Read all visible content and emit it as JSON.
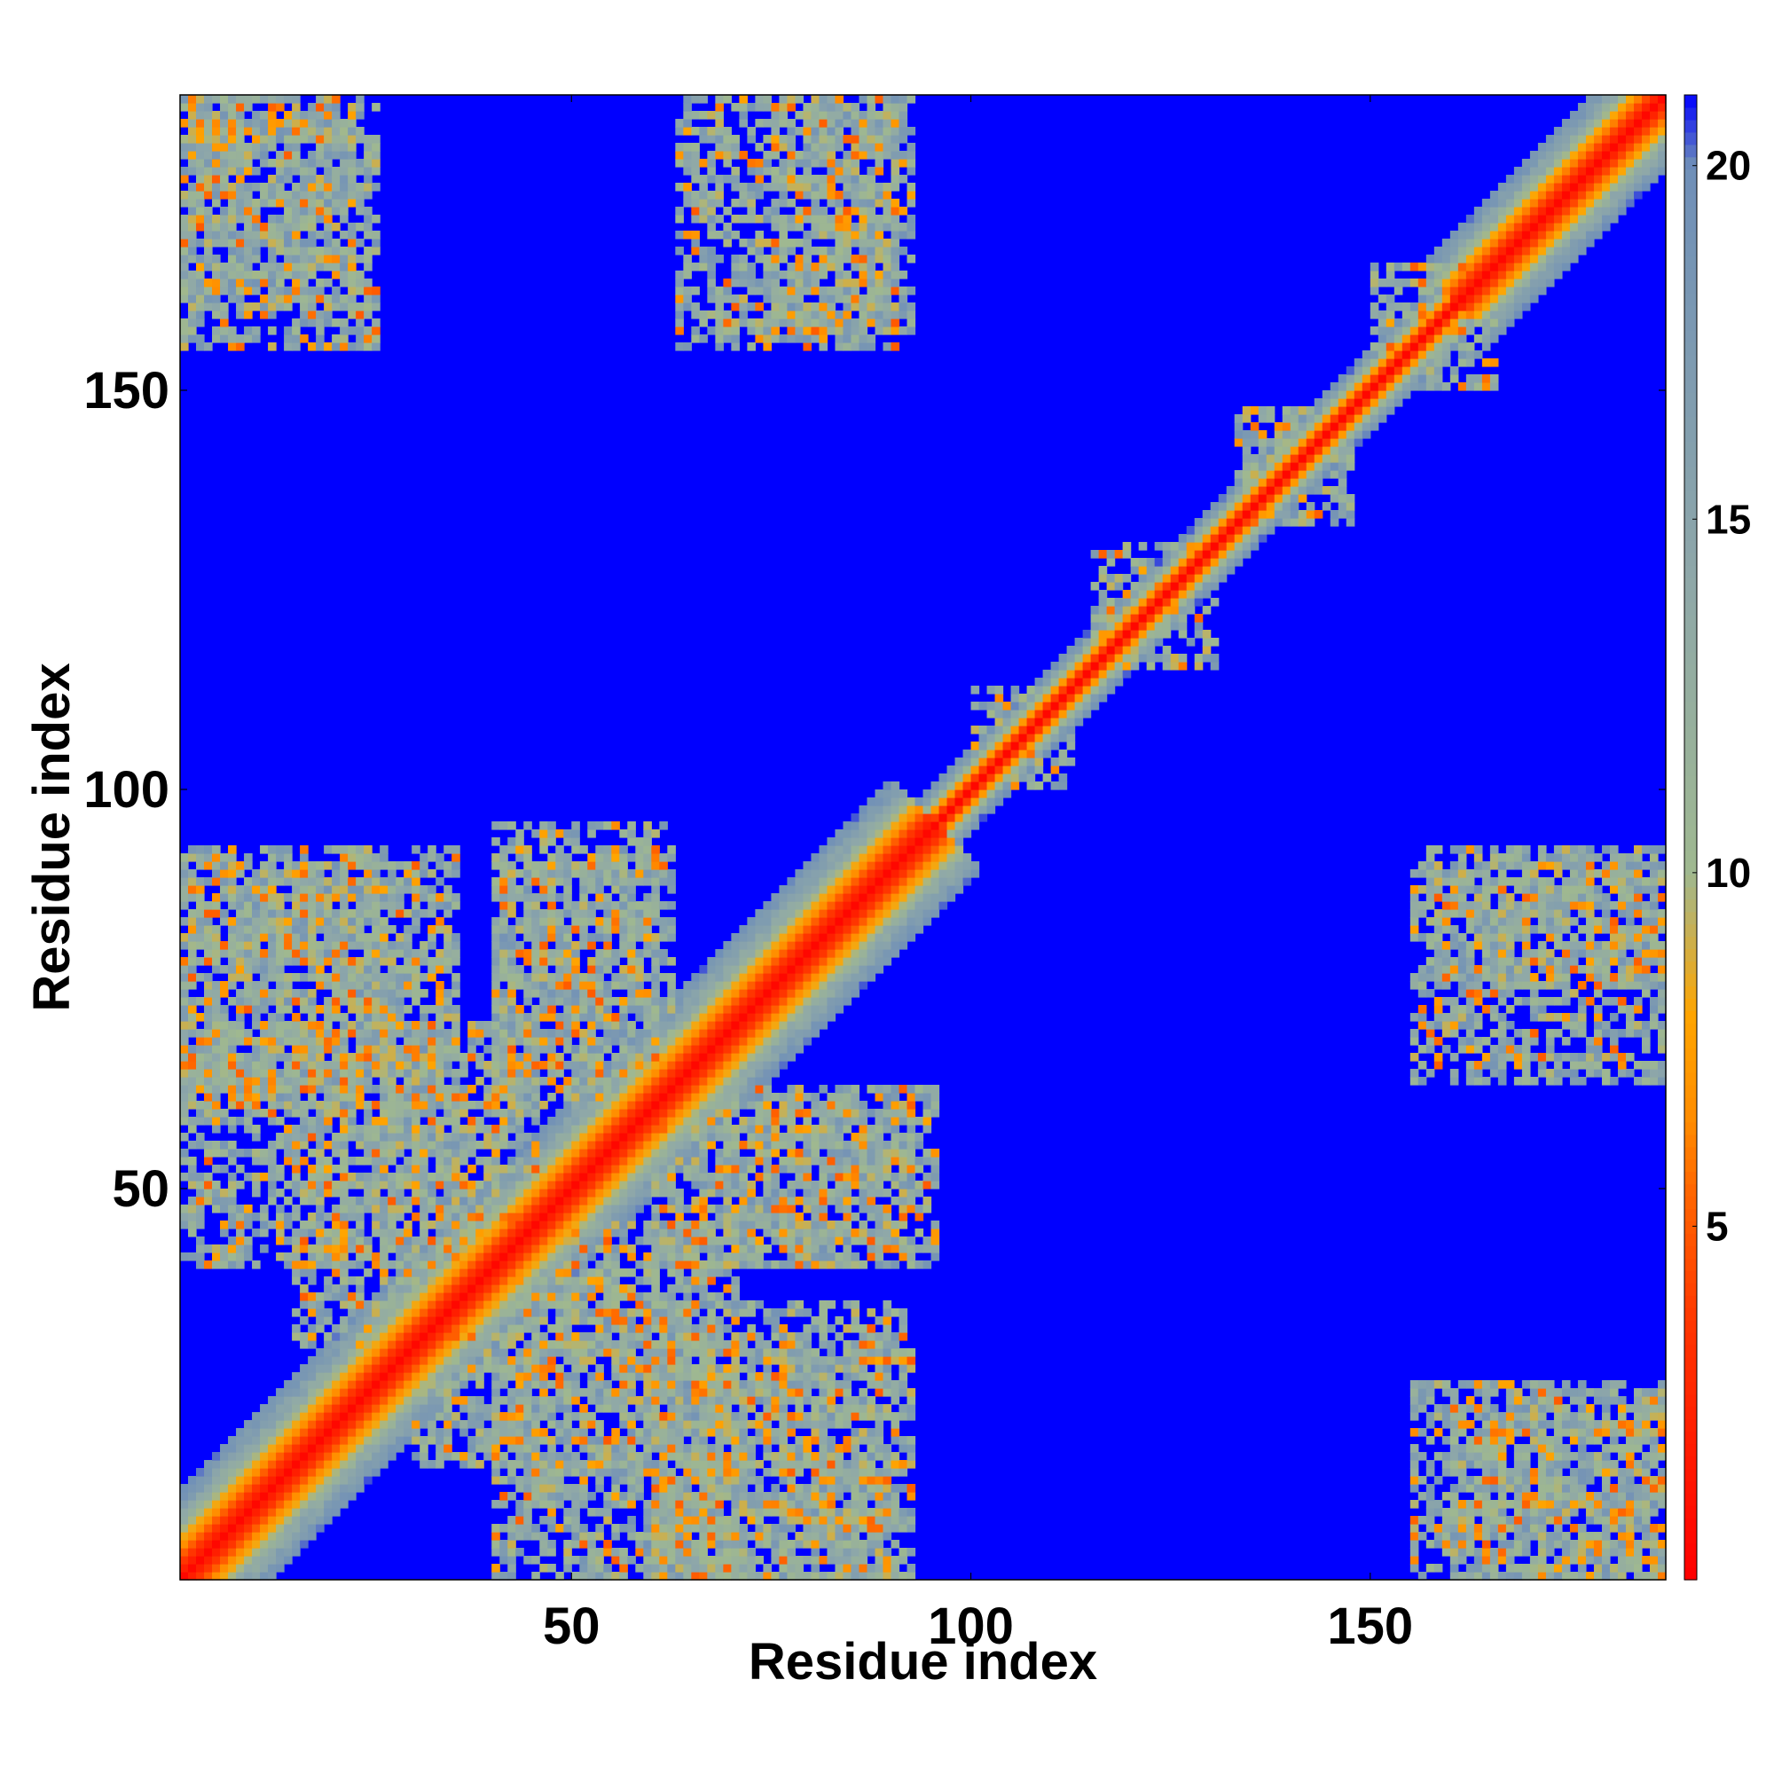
{
  "chart_data": {
    "type": "heatmap",
    "description_of_matrix": "residue-residue distance map; diagonal band plus off-diagonal contact patches",
    "n_residues": 186,
    "xlabel": "Residue index",
    "ylabel": "Residue index",
    "xlim": [
      1,
      187
    ],
    "ylim": [
      1,
      187
    ],
    "xticks": [
      50,
      100,
      150
    ],
    "yticks": [
      50,
      100,
      150
    ],
    "colorbar": {
      "range": [
        0,
        21
      ],
      "ticks": [
        5,
        10,
        15,
        20
      ],
      "colors": [
        "#ff0000",
        "#ff3300",
        "#ff6600",
        "#ff8c00",
        "#ffa500",
        "#9fb890",
        "#8fa8a8",
        "#6f8fb8",
        "#0000ff"
      ],
      "stops": [
        0,
        3.5,
        5.5,
        6.5,
        8,
        10,
        14,
        20,
        21
      ]
    },
    "background_color": "#0000ff",
    "diagonal_band": [
      {
        "from": 1,
        "to": 95,
        "half_width": 11
      },
      {
        "from": 95,
        "to": 160,
        "half_width": 5
      },
      {
        "from": 160,
        "to": 187,
        "half_width": 9
      }
    ],
    "contact_patches": [
      {
        "x": [
          1,
          25
        ],
        "y": [
          155,
          187
        ]
      },
      {
        "x": [
          63,
          90
        ],
        "y": [
          155,
          187
        ]
      },
      {
        "x": [
          1,
          35
        ],
        "y": [
          60,
          92
        ]
      },
      {
        "x": [
          1,
          45
        ],
        "y": [
          40,
          70
        ]
      },
      {
        "x": [
          40,
          60
        ],
        "y": [
          65,
          92
        ]
      },
      {
        "x": [
          60,
          95
        ],
        "y": [
          40,
          62
        ]
      },
      {
        "x": [
          30,
          60
        ],
        "y": [
          15,
          40
        ]
      },
      {
        "x": [
          60,
          90
        ],
        "y": [
          1,
          30
        ]
      },
      {
        "x": [
          157,
          187
        ],
        "y": [
          75,
          92
        ]
      },
      {
        "x": [
          160,
          187
        ],
        "y": [
          1,
          22
        ]
      },
      {
        "x": [
          100,
          112
        ],
        "y": [
          100,
          112
        ]
      },
      {
        "x": [
          115,
          130
        ],
        "y": [
          115,
          130
        ]
      },
      {
        "x": [
          133,
          147
        ],
        "y": [
          133,
          147
        ]
      },
      {
        "x": [
          150,
          165
        ],
        "y": [
          150,
          165
        ]
      }
    ]
  }
}
